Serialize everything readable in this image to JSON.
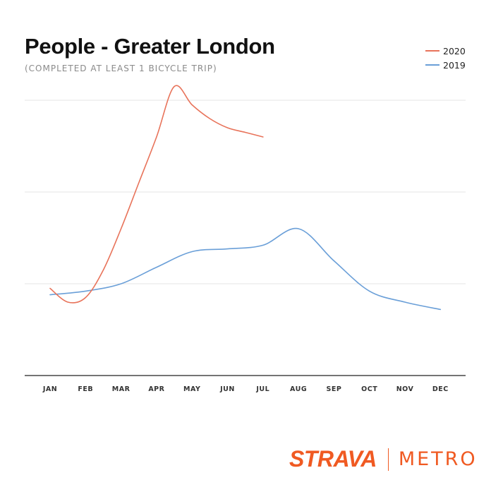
{
  "title": "People - Greater London",
  "subtitle": "(COMPLETED AT LEAST 1 BICYCLE TRIP)",
  "brand": {
    "primary": "STRAVA",
    "secondary": "METRO",
    "color": "#f05a22"
  },
  "colors": {
    "series_2020": "#e8735a",
    "series_2019": "#6a9fd8",
    "grid": "#e6e6e6",
    "axis": "#222222"
  },
  "chart_data": {
    "type": "line",
    "categories": [
      "JAN",
      "FEB",
      "MAR",
      "APR",
      "MAY",
      "JUN",
      "JUL",
      "AUG",
      "SEP",
      "OCT",
      "NOV",
      "DEC"
    ],
    "ylim": [
      0,
      3
    ],
    "grid": true,
    "legend_position": "top-right",
    "series": [
      {
        "name": "2020",
        "color": "#e8735a",
        "x": [
          0,
          0.5,
          1,
          1.5,
          2,
          2.5,
          3,
          3.5,
          4,
          4.5,
          5,
          5.5,
          6
        ],
        "values": [
          0.95,
          0.8,
          0.85,
          1.15,
          1.6,
          2.1,
          2.6,
          3.15,
          2.95,
          2.8,
          2.7,
          2.65,
          2.6
        ]
      },
      {
        "name": "2019",
        "color": "#6a9fd8",
        "x": [
          0,
          1,
          2,
          3,
          4,
          5,
          6,
          7,
          8,
          9,
          10,
          11
        ],
        "values": [
          0.88,
          0.92,
          1.0,
          1.18,
          1.35,
          1.38,
          1.42,
          1.6,
          1.25,
          0.92,
          0.8,
          0.72
        ]
      }
    ]
  }
}
